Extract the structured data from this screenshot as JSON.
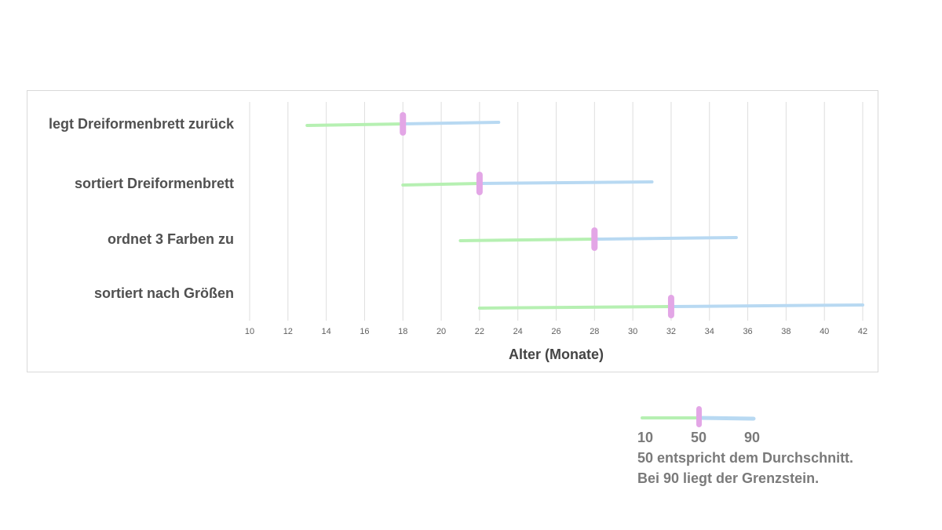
{
  "chart_data": {
    "type": "range",
    "xlabel": "Alter (Monate)",
    "xlim": [
      10,
      42
    ],
    "xticks": [
      10,
      12,
      14,
      16,
      18,
      20,
      22,
      24,
      26,
      28,
      30,
      32,
      34,
      36,
      38,
      40,
      42
    ],
    "grid": true,
    "colors": {
      "p10_to_p50": "#b6f0b2",
      "p50_to_p90": "#b8d9f2",
      "median": "#e3a6e6"
    },
    "rows": [
      {
        "label": "legt Dreiformenbrett zurück",
        "p10": 13,
        "p50": 18,
        "p90": 23
      },
      {
        "label": "sortiert Dreiformenbrett",
        "p10": 18,
        "p50": 22,
        "p90": 31
      },
      {
        "label": "ordnet 3 Farben zu",
        "p10": 21,
        "p50": 28,
        "p90": 35.4
      },
      {
        "label": "sortiert nach Größen",
        "p10": 22,
        "p50": 32,
        "p90": 42
      }
    ]
  },
  "legend": {
    "labels": [
      "10",
      "50",
      "90"
    ],
    "line1": "50 entspricht dem Durchschnitt.",
    "line2": "Bei 90 liegt der Grenzstein."
  }
}
